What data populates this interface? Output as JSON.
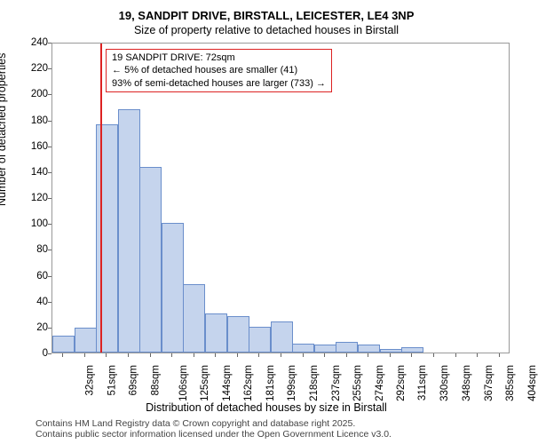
{
  "title_line1": "19, SANDPIT DRIVE, BIRSTALL, LEICESTER, LE4 3NP",
  "title_line2": "Size of property relative to detached houses in Birstall",
  "ylabel": "Number of detached properties",
  "xlabel": "Distribution of detached houses by size in Birstall",
  "chart": {
    "type": "histogram",
    "ylim": [
      0,
      240
    ],
    "ytick_step": 20,
    "x_categories": [
      "32sqm",
      "51sqm",
      "69sqm",
      "88sqm",
      "106sqm",
      "125sqm",
      "144sqm",
      "162sqm",
      "181sqm",
      "199sqm",
      "218sqm",
      "237sqm",
      "255sqm",
      "274sqm",
      "292sqm",
      "311sqm",
      "330sqm",
      "348sqm",
      "367sqm",
      "385sqm",
      "404sqm"
    ],
    "bar_values": [
      13,
      19,
      176,
      188,
      143,
      100,
      53,
      30,
      28,
      20,
      24,
      7,
      6,
      8,
      6,
      3,
      4,
      0,
      0,
      0,
      0
    ],
    "bar_fill": "#c5d4ed",
    "bar_stroke": "#6a8ecb",
    "plot_border": "#999999",
    "background_color": "#ffffff",
    "marker_x_index": 2.2,
    "marker_color": "#d22",
    "info_box_border": "#d22",
    "info_line1": "19 SANDPIT DRIVE: 72sqm",
    "info_line2": "← 5% of detached houses are smaller (41)",
    "info_line3": "93% of semi-detached houses are larger (733) →",
    "title_fontsize": 13,
    "subtitle_fontsize": 12.5,
    "label_fontsize": 12.5,
    "tick_fontsize": 11.5,
    "info_fontsize": 11
  },
  "footer_line1": "Contains HM Land Registry data © Crown copyright and database right 2025.",
  "footer_line2": "Contains public sector information licensed under the Open Government Licence v3.0."
}
